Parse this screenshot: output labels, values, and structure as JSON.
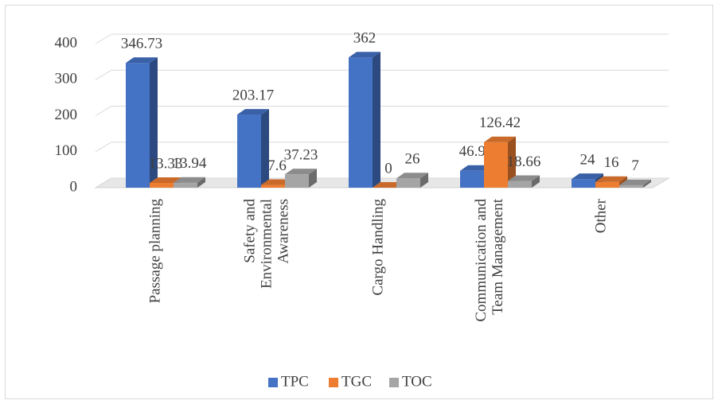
{
  "chart_data": {
    "type": "bar3d",
    "categories": [
      "Passage planning",
      "Safety and Environmental Awareness",
      "Cargo Handling",
      "Communication and Team Management",
      "Other"
    ],
    "series": [
      {
        "name": "TPC",
        "color": "#4472c4",
        "values": [
          346.73,
          203.17,
          362,
          46.93,
          24
        ]
      },
      {
        "name": "TGC",
        "color": "#ed7d31",
        "values": [
          13.33,
          7.6,
          0,
          126.42,
          16
        ]
      },
      {
        "name": "TOC",
        "color": "#a5a5a5",
        "values": [
          13.94,
          37.23,
          26,
          18.66,
          7
        ]
      }
    ],
    "ylim": [
      0,
      400
    ],
    "yticks": [
      0,
      100,
      200,
      300,
      400
    ],
    "grid": true,
    "legend": "bottom"
  }
}
